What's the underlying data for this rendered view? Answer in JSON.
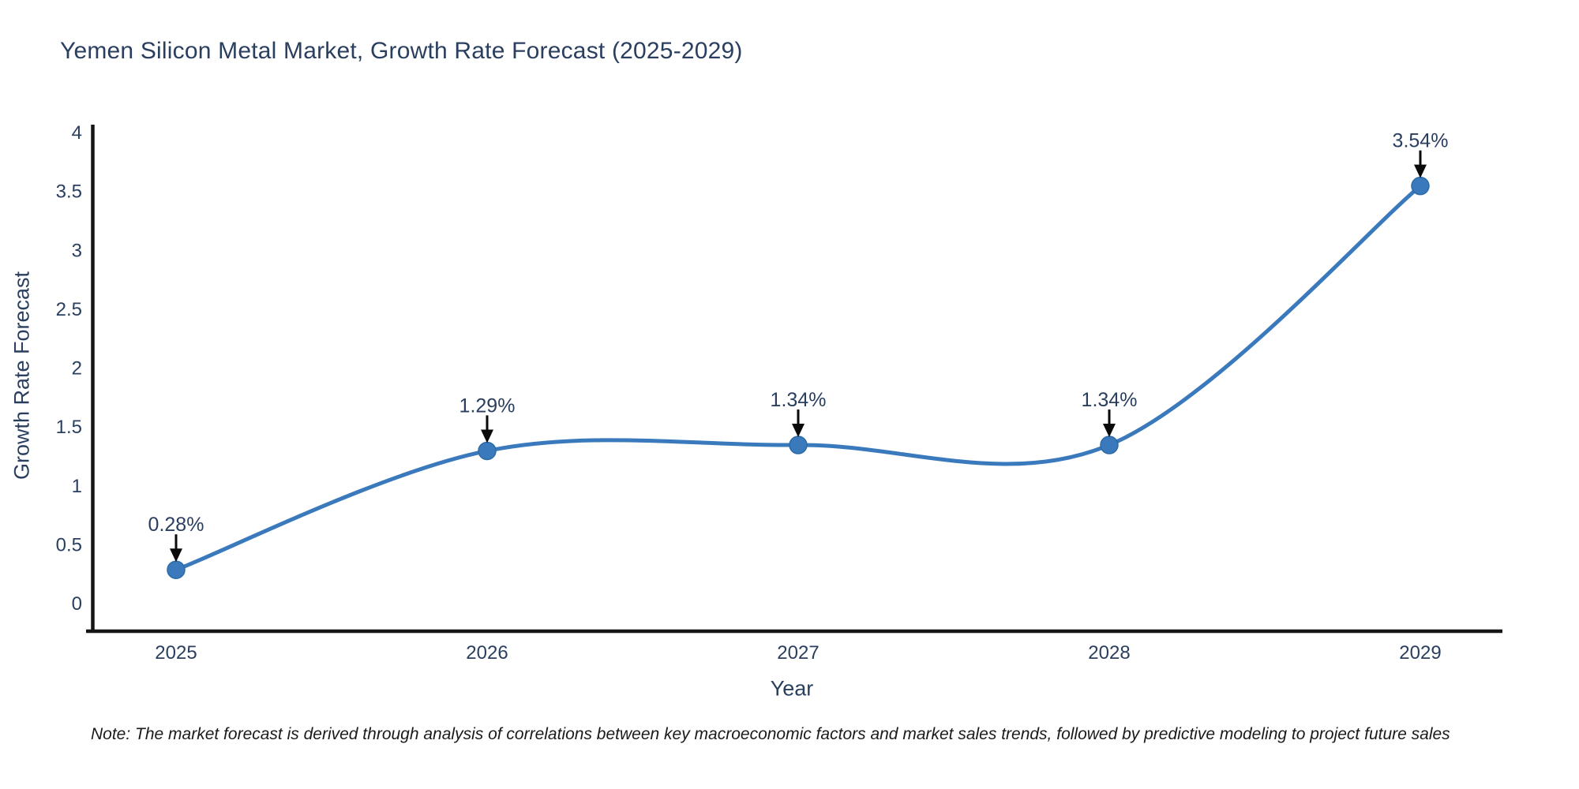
{
  "title": "Yemen Silicon Metal Market, Growth Rate Forecast (2025-2029)",
  "note": "Note: The market forecast is derived through analysis of correlations between key macroeconomic factors and market sales trends, followed by predictive modeling to project future sales",
  "chart_data": {
    "type": "line",
    "line_shape": "spline",
    "title": "Yemen Silicon Metal Market, Growth Rate Forecast (2025-2029)",
    "xlabel": "Year",
    "ylabel": "Growth Rate Forecast",
    "categories": [
      "2025",
      "2026",
      "2027",
      "2028",
      "2029"
    ],
    "series": [
      {
        "name": "Growth Rate Forecast",
        "values": [
          0.28,
          1.29,
          1.34,
          1.34,
          3.54
        ]
      }
    ],
    "point_labels": [
      "0.28%",
      "1.29%",
      "1.34%",
      "1.34%",
      "3.54%"
    ],
    "yticks": [
      "0",
      "0.5",
      "1",
      "1.5",
      "2",
      "2.5",
      "3",
      "3.5",
      "4"
    ],
    "ylim": [
      0,
      4
    ],
    "grid": false,
    "legend_position": "none",
    "annotation_style": "black-arrow-down-to-point",
    "colors": {
      "line": "#3a7abc",
      "marker": "#3a7abc",
      "marker_edge": "#2e6ba6",
      "text": "#2a3f5f",
      "axis_line": "#151515",
      "arrow": "#0a0a0a",
      "note_text": "#1a1a1a",
      "background": "#ffffff"
    }
  }
}
